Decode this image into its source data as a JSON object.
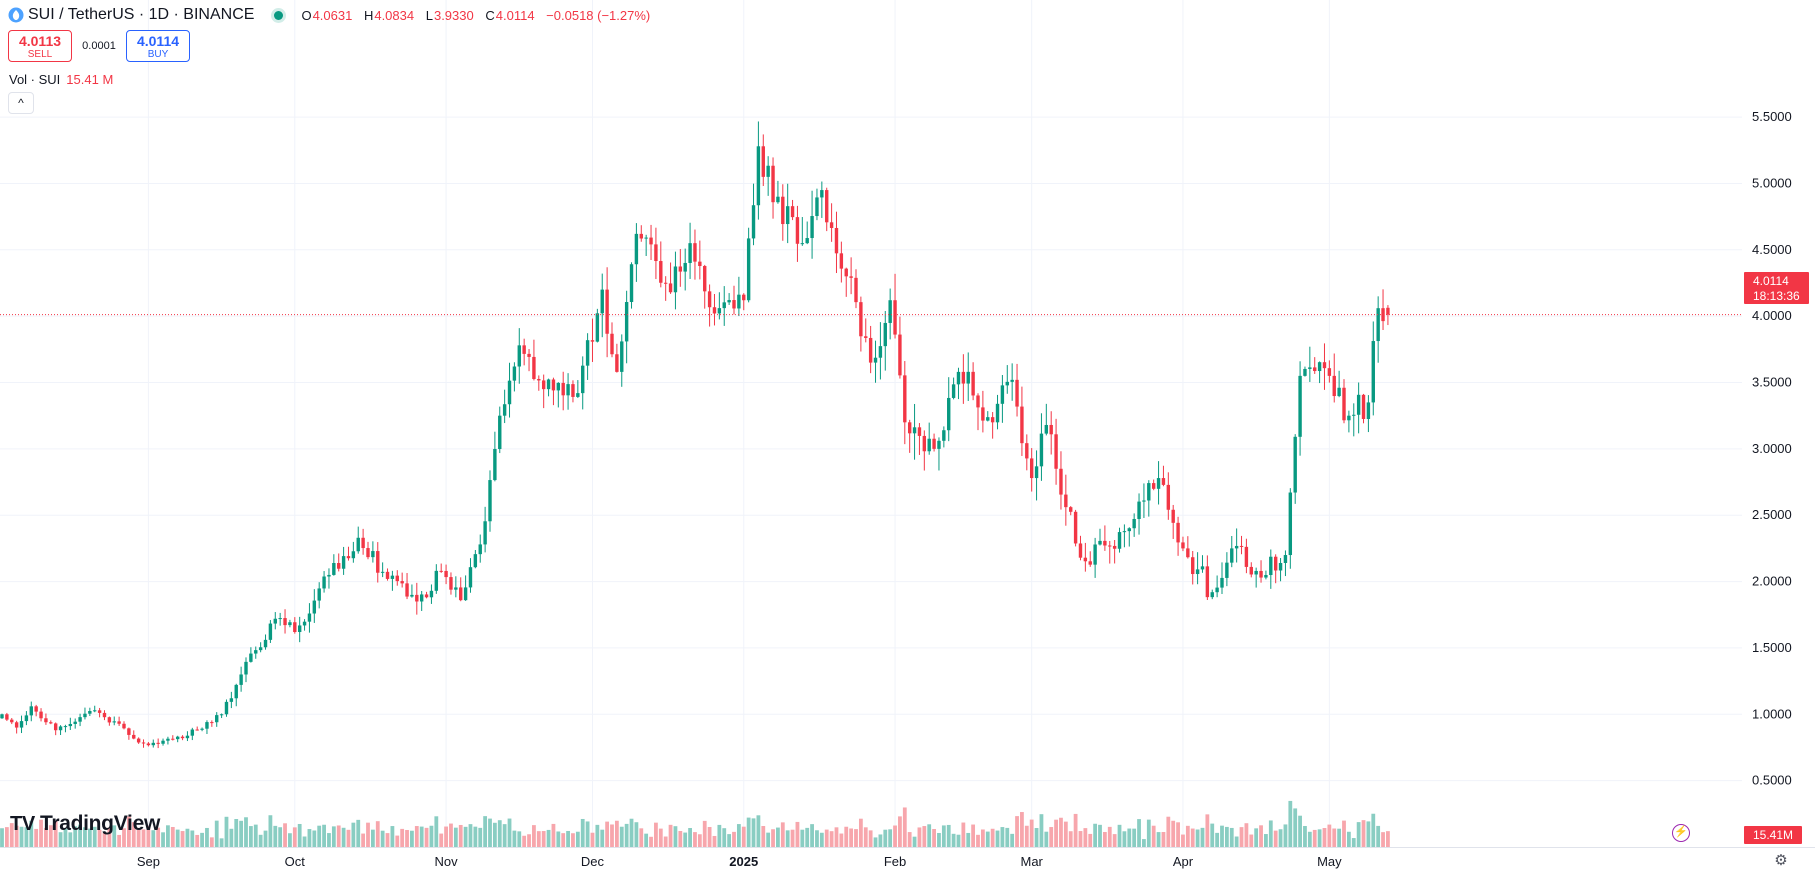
{
  "header": {
    "title": "SUI / TetherUS · 1D · BINANCE",
    "open_label": "O",
    "open": "4.0631",
    "high_label": "H",
    "high": "4.0834",
    "low_label": "L",
    "low": "3.9330",
    "close_label": "C",
    "close": "4.0114",
    "change": "−0.0518 (−1.27%)"
  },
  "trade": {
    "sell_price": "4.0113",
    "sell_label": "SELL",
    "spread": "0.0001",
    "buy_price": "4.0114",
    "buy_label": "BUY"
  },
  "volume_legend": {
    "label": "Vol · SUI",
    "value": "15.41 M"
  },
  "collapse_glyph": "^",
  "brand": {
    "glyph": "TV",
    "name": "TradingView"
  },
  "last_price": {
    "price": "4.0114",
    "countdown": "18:13:36"
  },
  "volume_tag": "15.41M",
  "icons": {
    "bolt": "⚡",
    "gear": "⚙"
  },
  "colors": {
    "up": "#089981",
    "down": "#f23645",
    "up_volume": "#89cdc2",
    "down_volume": "#f7a6ac",
    "grid": "#f0f3fa"
  },
  "chart_data": {
    "type": "candlestick",
    "symbol": "SUI / TetherUS",
    "interval": "1D",
    "exchange": "BINANCE",
    "y_ticks": [
      "5.5000",
      "5.0000",
      "4.5000",
      "4.0000",
      "3.5000",
      "3.0000",
      "2.5000",
      "2.0000",
      "1.5000",
      "1.0000",
      "0.5000"
    ],
    "ylim": [
      0.0,
      5.9
    ],
    "x_ticks": [
      "Sep",
      "Oct",
      "Nov",
      "Dec",
      "2025",
      "Feb",
      "Mar",
      "Apr",
      "May"
    ],
    "x_tick_dates": [
      "2024-09-01",
      "2024-10-01",
      "2024-11-01",
      "2024-12-01",
      "2025-01-01",
      "2025-02-01",
      "2025-03-01",
      "2025-04-01",
      "2025-05-01"
    ],
    "start_date": "2024-08-02",
    "last_price": 4.0114,
    "price_anchors": [
      [
        "2024-08-02",
        1.0,
        0.0
      ],
      [
        "2024-08-05",
        0.9,
        0.03
      ],
      [
        "2024-08-08",
        1.06,
        0.03
      ],
      [
        "2024-08-13",
        0.88,
        0.03
      ],
      [
        "2024-08-21",
        1.03,
        0.03
      ],
      [
        "2024-08-31",
        0.78,
        0.02
      ],
      [
        "2024-09-08",
        0.82,
        0.02
      ],
      [
        "2024-09-16",
        1.0,
        0.03
      ],
      [
        "2024-09-20",
        1.3,
        0.05
      ],
      [
        "2024-09-27",
        1.72,
        0.05
      ],
      [
        "2024-10-01",
        1.62,
        0.05
      ],
      [
        "2024-10-08",
        2.05,
        0.07
      ],
      [
        "2024-10-14",
        2.33,
        0.06
      ],
      [
        "2024-10-20",
        2.02,
        0.06
      ],
      [
        "2024-10-26",
        1.85,
        0.07
      ],
      [
        "2024-10-31",
        2.08,
        0.06
      ],
      [
        "2024-11-04",
        1.86,
        0.06
      ],
      [
        "2024-11-08",
        2.28,
        0.07
      ],
      [
        "2024-11-12",
        3.25,
        0.1
      ],
      [
        "2024-11-16",
        3.78,
        0.1
      ],
      [
        "2024-11-21",
        3.45,
        0.1
      ],
      [
        "2024-11-28",
        3.42,
        0.09
      ],
      [
        "2024-12-03",
        4.2,
        0.14
      ],
      [
        "2024-12-06",
        3.58,
        0.12
      ],
      [
        "2024-12-10",
        4.62,
        0.12
      ],
      [
        "2024-12-17",
        4.18,
        0.12
      ],
      [
        "2024-12-21",
        4.55,
        0.12
      ],
      [
        "2024-12-26",
        4.02,
        0.1
      ],
      [
        "2025-01-01",
        4.12,
        0.1
      ],
      [
        "2025-01-04",
        5.28,
        0.14
      ],
      [
        "2025-01-08",
        4.9,
        0.14
      ],
      [
        "2025-01-13",
        4.55,
        0.14
      ],
      [
        "2025-01-17",
        4.95,
        0.14
      ],
      [
        "2025-01-22",
        4.3,
        0.12
      ],
      [
        "2025-01-27",
        3.65,
        0.13
      ],
      [
        "2025-01-31",
        4.12,
        0.14
      ],
      [
        "2025-02-03",
        3.2,
        0.16
      ],
      [
        "2025-02-09",
        3.0,
        0.12
      ],
      [
        "2025-02-14",
        3.58,
        0.12
      ],
      [
        "2025-02-21",
        3.2,
        0.12
      ],
      [
        "2025-02-25",
        3.52,
        0.12
      ],
      [
        "2025-03-01",
        2.78,
        0.12
      ],
      [
        "2025-03-04",
        3.18,
        0.12
      ],
      [
        "2025-03-11",
        2.18,
        0.1
      ],
      [
        "2025-03-20",
        2.38,
        0.09
      ],
      [
        "2025-03-27",
        2.78,
        0.09
      ],
      [
        "2025-04-01",
        2.25,
        0.08
      ],
      [
        "2025-04-07",
        1.92,
        0.1
      ],
      [
        "2025-04-11",
        2.25,
        0.1
      ],
      [
        "2025-04-16",
        2.08,
        0.07
      ],
      [
        "2025-04-22",
        2.2,
        0.08
      ],
      [
        "2025-04-25",
        3.55,
        0.12
      ],
      [
        "2025-05-01",
        3.55,
        0.12
      ],
      [
        "2025-05-05",
        3.25,
        0.11
      ],
      [
        "2025-05-09",
        3.35,
        0.11
      ],
      [
        "2025-05-11",
        4.06,
        0.12
      ],
      [
        "2025-05-13",
        4.0114,
        0.08
      ]
    ],
    "ohlc_last": {
      "open": 4.0631,
      "high": 4.0834,
      "low": 3.933,
      "close": 4.0114
    },
    "volume_last": "15.41 M"
  }
}
